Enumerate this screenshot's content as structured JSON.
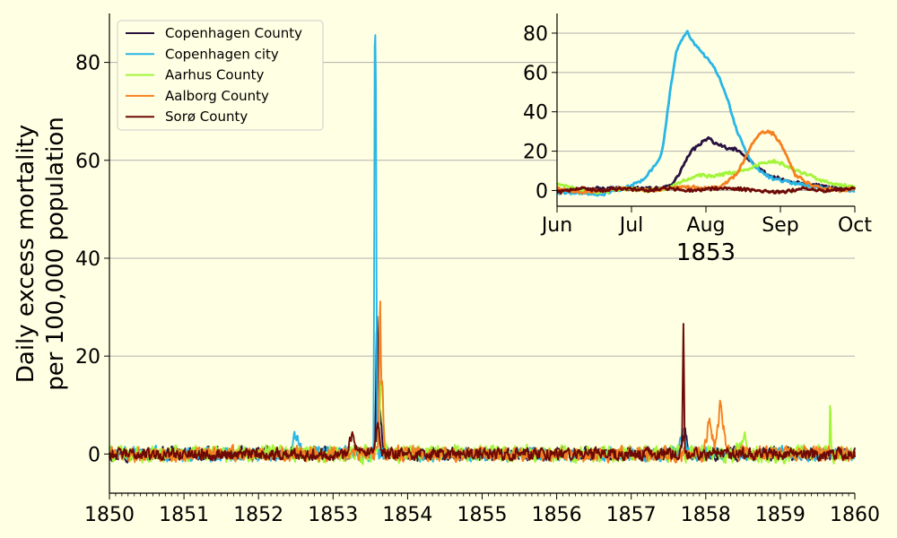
{
  "chart_data": [
    {
      "type": "line",
      "ylabel_line1": "Daily excess mortality",
      "ylabel_line2": "per 100,000 population",
      "xlabel": "",
      "xlim": [
        1850,
        1860
      ],
      "ylim": [
        -8,
        90
      ],
      "grid": "horizontal",
      "legend": "top-left",
      "xticks": [
        1850,
        1851,
        1852,
        1853,
        1854,
        1855,
        1856,
        1857,
        1858,
        1859,
        1860
      ],
      "xtick_labels": [
        "1850",
        "1851",
        "1852",
        "1853",
        "1854",
        "1855",
        "1856",
        "1857",
        "1858",
        "1859",
        "1860"
      ],
      "yticks": [
        0,
        20,
        40,
        60,
        80
      ],
      "ytick_labels": [
        "0",
        "20",
        "40",
        "60",
        "80"
      ],
      "series": [
        {
          "name": "Copenhagen County",
          "color": "#2a1240",
          "noise": 1.8,
          "peaks": [
            {
              "x": 1853.59,
              "y": 27,
              "w": 0.018
            },
            {
              "x": 1853.63,
              "y": 9,
              "w": 0.03
            },
            {
              "x": 1857.72,
              "y": 4,
              "w": 0.04
            }
          ]
        },
        {
          "name": "Copenhagen city",
          "color": "#29b6e6",
          "noise": 1.9,
          "peaks": [
            {
              "x": 1853.56,
              "y": 81,
              "w": 0.01
            },
            {
              "x": 1853.575,
              "y": 66,
              "w": 0.01
            },
            {
              "x": 1852.5,
              "y": 4,
              "w": 0.05
            },
            {
              "x": 1857.7,
              "y": 4,
              "w": 0.05
            }
          ]
        },
        {
          "name": "Aarhus County",
          "color": "#a2f53a",
          "noise": 2.3,
          "peaks": [
            {
              "x": 1853.65,
              "y": 15,
              "w": 0.03
            },
            {
              "x": 1859.67,
              "y": 10,
              "w": 0.01
            },
            {
              "x": 1858.5,
              "y": 4,
              "w": 0.05
            }
          ]
        },
        {
          "name": "Aalborg County",
          "color": "#f58020",
          "noise": 2.0,
          "peaks": [
            {
              "x": 1853.63,
              "y": 30,
              "w": 0.014
            },
            {
              "x": 1853.66,
              "y": 14,
              "w": 0.02
            },
            {
              "x": 1858.2,
              "y": 10,
              "w": 0.05
            },
            {
              "x": 1858.05,
              "y": 7,
              "w": 0.05
            }
          ]
        },
        {
          "name": "Sorø County",
          "color": "#6e0a05",
          "noise": 1.6,
          "peaks": [
            {
              "x": 1857.7,
              "y": 26,
              "w": 0.012
            },
            {
              "x": 1853.6,
              "y": 6,
              "w": 0.03
            },
            {
              "x": 1853.25,
              "y": 4,
              "w": 0.05
            }
          ]
        }
      ]
    },
    {
      "type": "line",
      "xlabel": "1853",
      "xlim": [
        0,
        4
      ],
      "ylim": [
        -8,
        90
      ],
      "grid": "horizontal",
      "xticks": [
        0,
        1,
        2,
        3,
        4
      ],
      "xtick_labels": [
        "Jun",
        "Jul",
        "Aug",
        "Sep",
        "Oct"
      ],
      "yticks": [
        0,
        20,
        40,
        60,
        80
      ],
      "ytick_labels": [
        "0",
        "20",
        "40",
        "60",
        "80"
      ],
      "series": [
        {
          "name": "Copenhagen County",
          "color": "#2a1240",
          "x": [
            0,
            0.5,
            1.0,
            1.3,
            1.5,
            1.6,
            1.8,
            1.9,
            2.0,
            2.05,
            2.1,
            2.2,
            2.3,
            2.4,
            2.5,
            2.6,
            2.7,
            2.8,
            2.9,
            3.0,
            3.2,
            3.4,
            3.6,
            3.8,
            4.0
          ],
          "y": [
            0,
            1,
            1,
            1,
            2,
            6,
            20,
            23,
            26,
            27,
            24,
            23,
            21,
            21,
            18,
            15,
            12,
            9,
            7,
            6,
            4,
            3,
            2,
            1,
            1
          ]
        },
        {
          "name": "Copenhagen city",
          "color": "#29b6e6",
          "x": [
            0,
            0.3,
            0.6,
            0.9,
            1.1,
            1.2,
            1.3,
            1.4,
            1.45,
            1.5,
            1.55,
            1.6,
            1.7,
            1.75,
            1.8,
            1.9,
            2.0,
            2.1,
            2.2,
            2.3,
            2.4,
            2.5,
            2.6,
            2.7,
            2.8,
            2.9,
            3.0,
            3.3,
            3.6,
            4.0
          ],
          "y": [
            -1,
            -1,
            -2,
            1,
            4,
            7,
            12,
            18,
            30,
            45,
            58,
            70,
            79,
            81,
            77,
            72,
            68,
            63,
            56,
            45,
            32,
            23,
            15,
            11,
            8,
            6,
            5,
            3,
            1,
            0
          ]
        },
        {
          "name": "Aarhus County",
          "color": "#a2f53a",
          "x": [
            0,
            0.3,
            0.6,
            0.9,
            1.2,
            1.5,
            1.7,
            1.9,
            2.1,
            2.3,
            2.5,
            2.7,
            2.9,
            3.0,
            3.1,
            3.3,
            3.5,
            3.7,
            4.0
          ],
          "y": [
            4,
            0,
            -1,
            1,
            0,
            1,
            5,
            8,
            7,
            9,
            10,
            13,
            15,
            14,
            12,
            9,
            6,
            3,
            2
          ]
        },
        {
          "name": "Aalborg County",
          "color": "#f58020",
          "x": [
            0,
            0.3,
            0.6,
            0.9,
            1.2,
            1.5,
            1.8,
            2.0,
            2.2,
            2.4,
            2.5,
            2.6,
            2.7,
            2.8,
            2.9,
            3.0,
            3.1,
            3.2,
            3.4,
            3.6,
            3.8,
            4.0
          ],
          "y": [
            1,
            -1,
            0,
            1,
            0,
            1,
            2,
            1,
            2,
            8,
            14,
            22,
            28,
            30,
            29,
            24,
            16,
            8,
            3,
            1,
            0,
            1
          ]
        },
        {
          "name": "Sorø County",
          "color": "#6e0a05",
          "x": [
            0,
            0.3,
            0.6,
            0.9,
            1.2,
            1.5,
            1.8,
            2.1,
            2.4,
            2.7,
            3.0,
            3.3,
            3.6,
            4.0
          ],
          "y": [
            -1,
            1,
            0,
            1,
            0,
            1,
            0,
            1,
            1,
            0,
            -1,
            1,
            0,
            1
          ]
        }
      ]
    }
  ]
}
